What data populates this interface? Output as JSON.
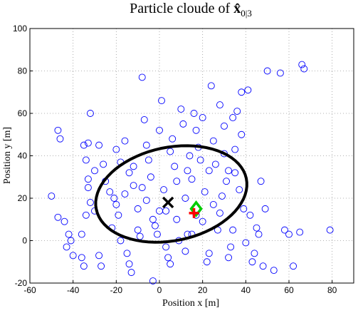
{
  "chart_data": {
    "type": "scatter",
    "title": "Particle cloude of",
    "title_symbol": "x̂",
    "title_subscript": "0|3",
    "xlabel": "Position x [m]",
    "ylabel": "Position y [m]",
    "xlim": [
      -60,
      90
    ],
    "ylim": [
      -20,
      100
    ],
    "xticks": [
      -60,
      -40,
      -20,
      0,
      20,
      40,
      60,
      80
    ],
    "yticks": [
      -20,
      0,
      20,
      40,
      60,
      80,
      100
    ],
    "grid": true,
    "series": [
      {
        "color": "#0000ff",
        "x": [
          -50,
          -47,
          -46,
          -47,
          -44,
          -42,
          -41,
          -40,
          -43,
          -36,
          -35,
          -36,
          -34,
          -32,
          -33,
          -33,
          -34,
          -33,
          -32,
          -35,
          -30,
          -28,
          -27,
          -26,
          -23,
          -21,
          -20,
          -19,
          -18,
          -15,
          -14,
          -13,
          -20,
          -18,
          -16,
          -14,
          -12,
          -10,
          -10,
          -9,
          -8,
          -7,
          -6,
          -5,
          -4,
          -3,
          -2,
          -1,
          0,
          1,
          2,
          3,
          4,
          5,
          5,
          6,
          7,
          8,
          9,
          10,
          11,
          12,
          13,
          13,
          14,
          15,
          16,
          17,
          18,
          19,
          20,
          21,
          22,
          23,
          24,
          25,
          26,
          27,
          28,
          29,
          30,
          31,
          32,
          33,
          34,
          34,
          35,
          36,
          37,
          38,
          39,
          40,
          41,
          42,
          43,
          44,
          45,
          46,
          47,
          48,
          49,
          50,
          53,
          56,
          58,
          60,
          62,
          65,
          66,
          67,
          79,
          -3,
          17,
          25,
          32,
          -25,
          -30,
          -22,
          -6,
          3,
          12,
          -12,
          23,
          30,
          35,
          20,
          -16,
          8,
          15,
          -28,
          28,
          38,
          -8,
          0
        ],
        "values": [
          21,
          52,
          48,
          11,
          9,
          3,
          0,
          -7,
          -3,
          -8,
          -12,
          3,
          12,
          18,
          25,
          29,
          38,
          46,
          60,
          45,
          33,
          -7,
          -12,
          36,
          23,
          20,
          17,
          12,
          0,
          -6,
          -11,
          -15,
          43,
          37,
          47,
          32,
          26,
          15,
          5,
          2,
          77,
          57,
          45,
          38,
          30,
          10,
          7,
          3,
          52,
          66,
          24,
          -3,
          -8,
          -11,
          42,
          48,
          35,
          28,
          0,
          62,
          55,
          -5,
          3,
          33,
          40,
          29,
          60,
          52,
          44,
          38,
          58,
          23,
          -10,
          -6,
          73,
          47,
          36,
          5,
          13,
          21,
          54,
          28,
          -8,
          -3,
          5,
          58,
          43,
          61,
          24,
          70,
          15,
          -1,
          71,
          12,
          -10,
          -6,
          6,
          3,
          28,
          -12,
          15,
          80,
          -14,
          79,
          5,
          3,
          -12,
          4,
          83,
          81,
          5,
          -19,
          12,
          17,
          33,
          28,
          14,
          6,
          19,
          14,
          20,
          35,
          33,
          41,
          32,
          9,
          22,
          10,
          3,
          45,
          64,
          50,
          25,
          14
        ]
      }
    ],
    "markers": [
      {
        "x": 4,
        "y": 18,
        "color": "#000000",
        "symbol": "x"
      },
      {
        "x": 17,
        "y": 15,
        "color": "#00cc00",
        "symbol": "diamond"
      },
      {
        "x": 16,
        "y": 13,
        "color": "#ff0000",
        "symbol": "plus"
      }
    ],
    "ellipse": {
      "cx": 5.5,
      "cy": 22,
      "rx": 35.5,
      "ry": 22,
      "angle": 12,
      "color": "#000000"
    }
  }
}
